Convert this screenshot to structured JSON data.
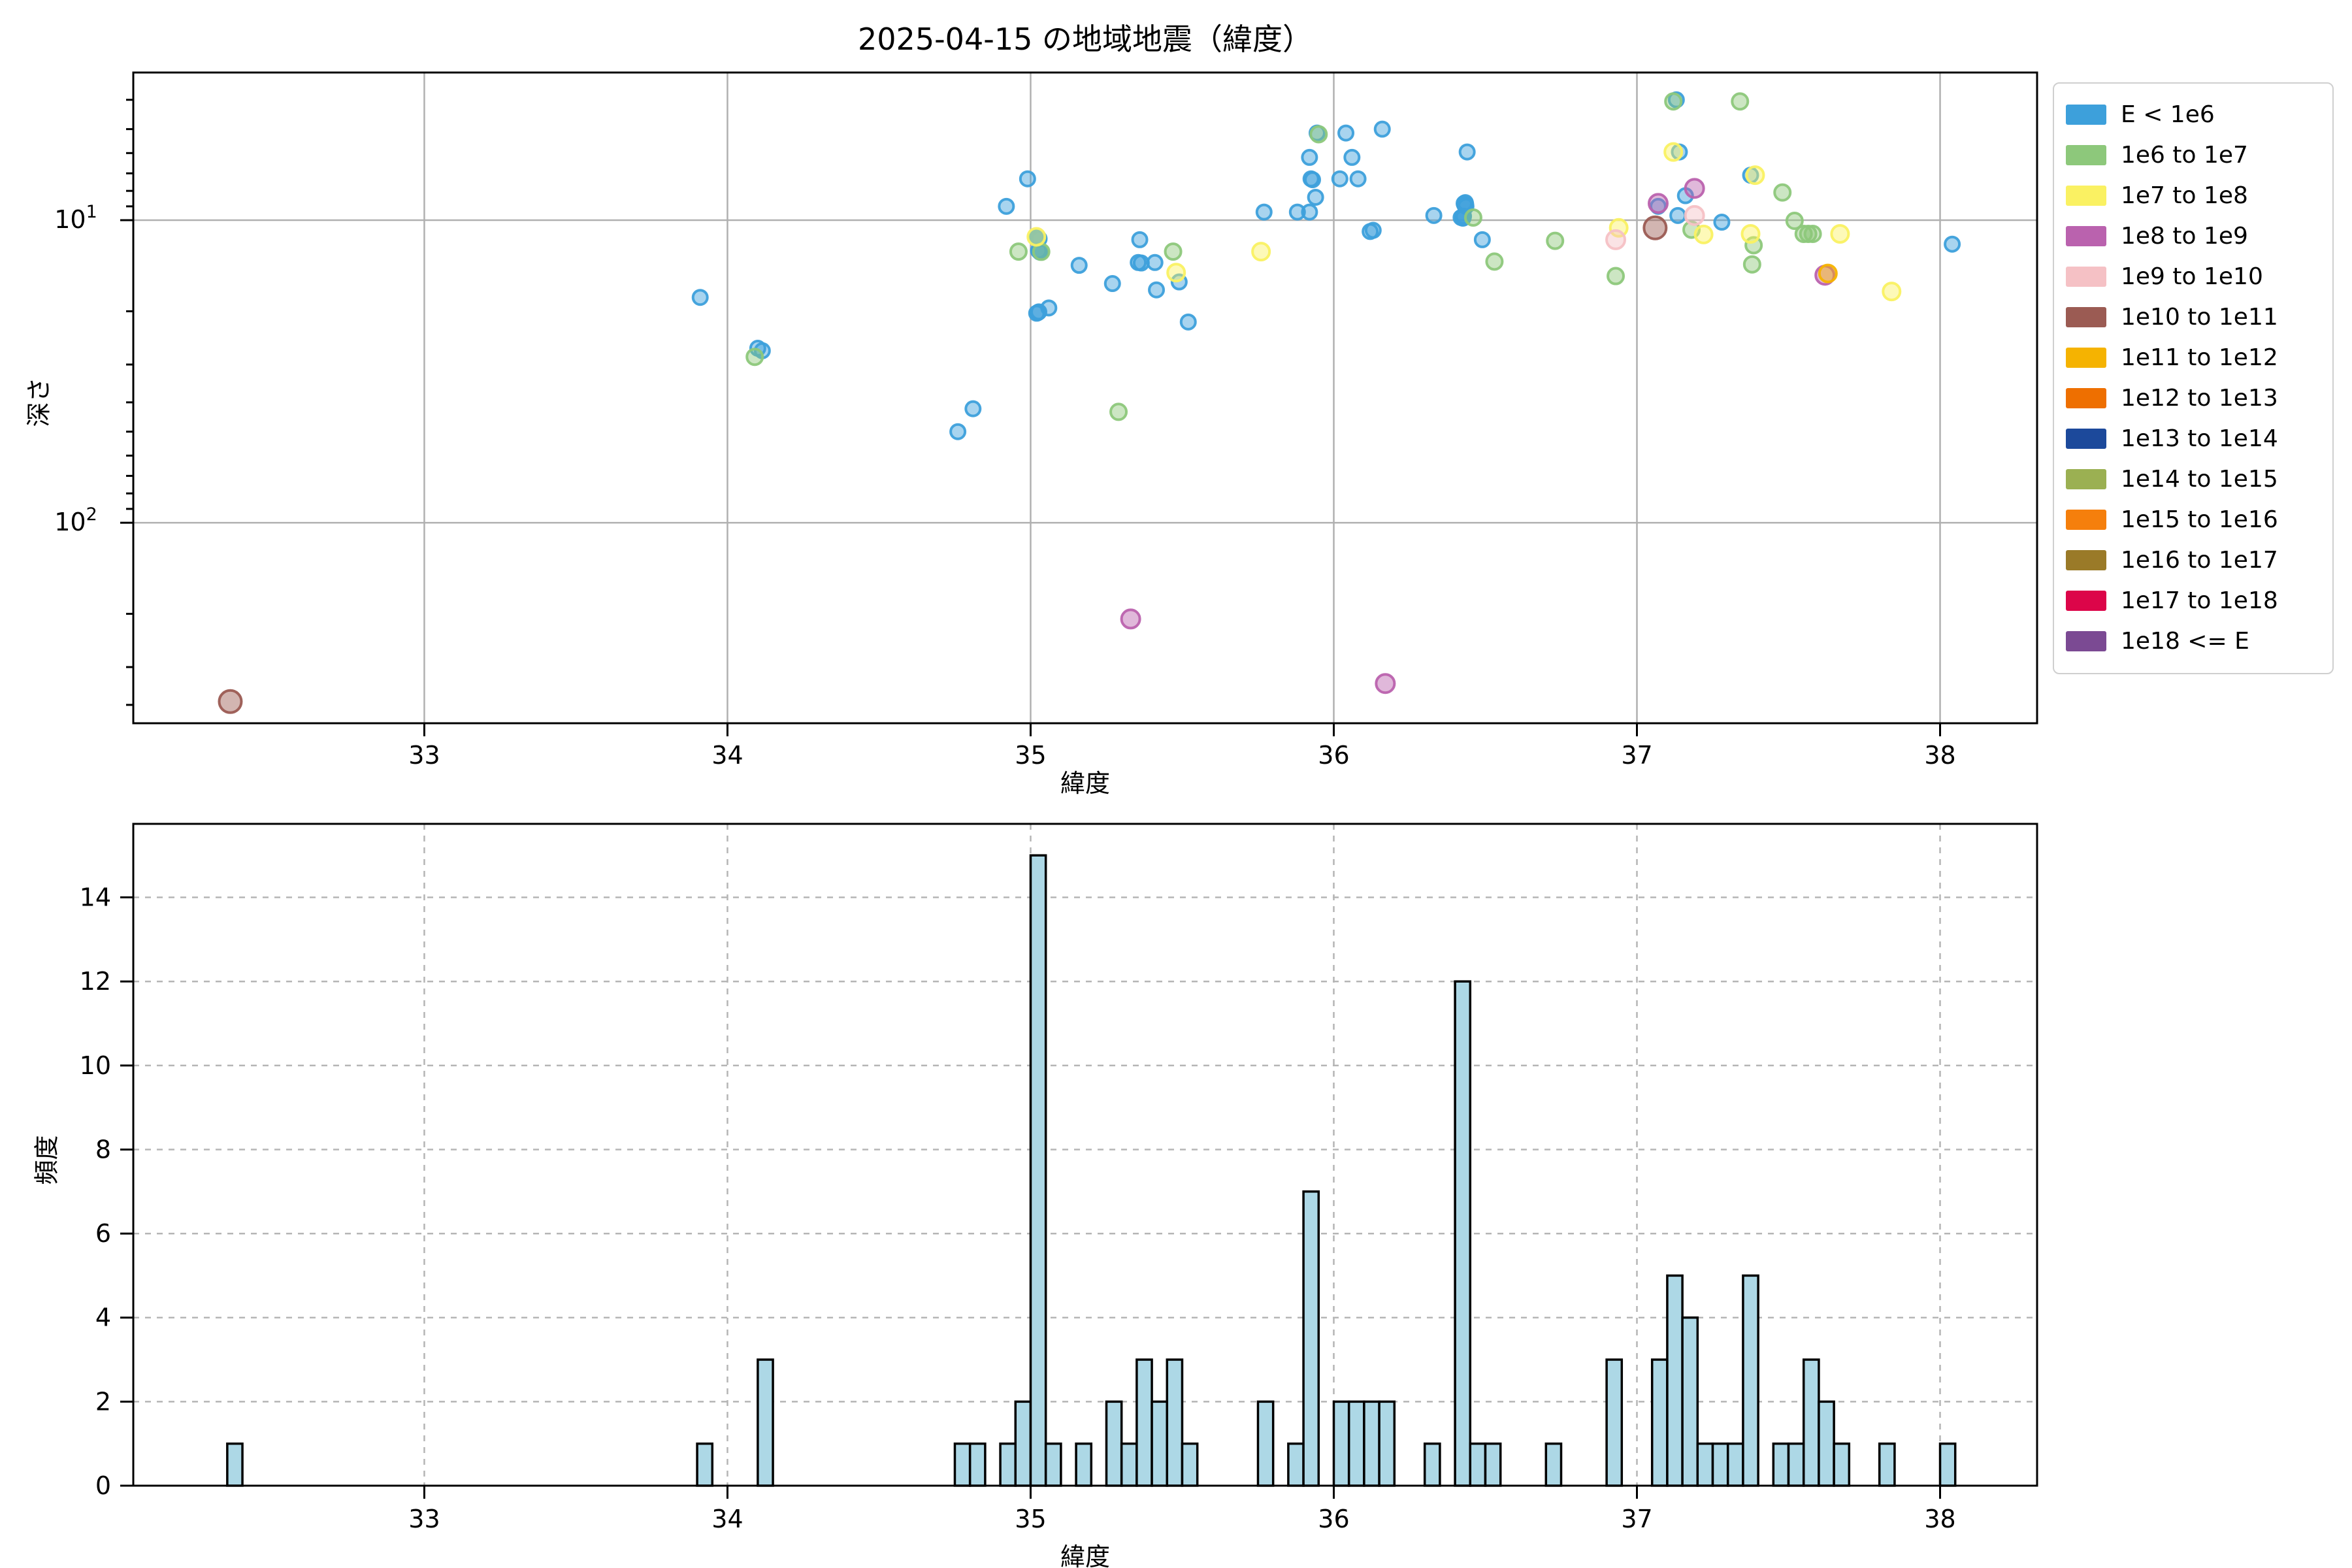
{
  "title": "2025-04-15 の地域地震（緯度）",
  "scatter": {
    "xlabel": "緯度",
    "ylabel": "深さ"
  },
  "hist": {
    "xlabel": "緯度",
    "ylabel": "頻度"
  },
  "legend": {
    "entries": [
      {
        "label": "E < 1e6",
        "color": "#3DA0DB"
      },
      {
        "label": "1e6 to 1e7",
        "color": "#8DC87B"
      },
      {
        "label": "1e7 to 1e8",
        "color": "#FAF162"
      },
      {
        "label": "1e8 to 1e9",
        "color": "#BA62AE"
      },
      {
        "label": "1e9 to 1e10",
        "color": "#F5C1C5"
      },
      {
        "label": "1e10 to 1e11",
        "color": "#9B5B53"
      },
      {
        "label": "1e11 to 1e12",
        "color": "#F5B301"
      },
      {
        "label": "1e12 to 1e13",
        "color": "#EE6F00"
      },
      {
        "label": "1e13 to 1e14",
        "color": "#1C499B"
      },
      {
        "label": "1e14 to 1e15",
        "color": "#9BB052"
      },
      {
        "label": "1e15 to 1e16",
        "color": "#F57F0C"
      },
      {
        "label": "1e16 to 1e17",
        "color": "#9A7A28"
      },
      {
        "label": "1e17 to 1e18",
        "color": "#DC0549"
      },
      {
        "label": "1e18 <= E",
        "color": "#7B4A93"
      }
    ]
  },
  "chart_data": [
    {
      "type": "scatter",
      "title": "2025-04-15 の地域地震（緯度）",
      "xlabel": "緯度",
      "ylabel": "深さ",
      "xlim": [
        32.04,
        38.32
      ],
      "ylim_depth": [
        3.25,
        460
      ],
      "yscale": "log-inverted",
      "xticks": [
        33,
        34,
        35,
        36,
        37,
        38
      ],
      "yticks_major": [
        10,
        100
      ],
      "yticks_minor": [
        4,
        5,
        6,
        7,
        8,
        9,
        20,
        30,
        40,
        50,
        60,
        70,
        80,
        90,
        200,
        300,
        400
      ],
      "grid": "solid",
      "legend_position": "outside-right",
      "series": [
        {
          "name": "E < 1e6",
          "color": "#3DA0DB",
          "marker_radius": 11,
          "points": [
            [
              33.91,
              18
            ],
            [
              34.1,
              26.5
            ],
            [
              34.115,
              27
            ],
            [
              34.76,
              50
            ],
            [
              34.81,
              42
            ],
            [
              34.92,
              9
            ],
            [
              34.99,
              7.3
            ],
            [
              35.02,
              11.4
            ],
            [
              35.021,
              11.45
            ],
            [
              35.022,
              11.5
            ],
            [
              35.023,
              11.42
            ],
            [
              35.025,
              11.48
            ],
            [
              35.028,
              11.52
            ],
            [
              35.03,
              12.7
            ],
            [
              35.031,
              12.75
            ],
            [
              35.029,
              12.65
            ],
            [
              35.026,
              12.6
            ],
            [
              35.02,
              20.3
            ],
            [
              35.024,
              20.2
            ],
            [
              35.027,
              20.1
            ],
            [
              35.06,
              19.5
            ],
            [
              35.16,
              14.1
            ],
            [
              35.27,
              16.2
            ],
            [
              35.355,
              13.8
            ],
            [
              35.36,
              11.6
            ],
            [
              35.365,
              13.85
            ],
            [
              35.41,
              13.8
            ],
            [
              35.415,
              17
            ],
            [
              35.49,
              16
            ],
            [
              35.52,
              21.7
            ],
            [
              35.77,
              9.4
            ],
            [
              35.88,
              9.4
            ],
            [
              35.92,
              9.4
            ],
            [
              35.92,
              6.2
            ],
            [
              35.925,
              7.3
            ],
            [
              35.93,
              7.35
            ],
            [
              35.94,
              8.4
            ],
            [
              35.945,
              5.15
            ],
            [
              36.02,
              7.3
            ],
            [
              36.04,
              5.15
            ],
            [
              36.06,
              6.2
            ],
            [
              36.08,
              7.3
            ],
            [
              36.12,
              10.9
            ],
            [
              36.13,
              10.8
            ],
            [
              36.16,
              5
            ],
            [
              36.33,
              9.65
            ],
            [
              36.42,
              9.8
            ],
            [
              36.425,
              9.75
            ],
            [
              36.426,
              9.85
            ],
            [
              36.427,
              9.78
            ],
            [
              36.428,
              9.7
            ],
            [
              36.43,
              8.8
            ],
            [
              36.432,
              8.9
            ],
            [
              36.434,
              8.75
            ],
            [
              36.435,
              8.85
            ],
            [
              36.436,
              9
            ],
            [
              36.44,
              5.95
            ],
            [
              36.49,
              11.6
            ],
            [
              37.07,
              9
            ],
            [
              37.13,
              4
            ],
            [
              37.135,
              9.65
            ],
            [
              37.14,
              5.95
            ],
            [
              37.16,
              8.3
            ],
            [
              37.28,
              10.15
            ],
            [
              37.375,
              7.1
            ],
            [
              38.04,
              12
            ]
          ]
        },
        {
          "name": "1e6 to 1e7",
          "color": "#8DC87B",
          "marker_radius": 12,
          "points": [
            [
              34.09,
              28.3
            ],
            [
              34.96,
              12.7
            ],
            [
              35.035,
              12.72
            ],
            [
              35.29,
              43
            ],
            [
              35.47,
              12.7
            ],
            [
              35.95,
              5.2
            ],
            [
              36.46,
              9.8
            ],
            [
              36.53,
              13.7
            ],
            [
              36.73,
              11.7
            ],
            [
              36.93,
              15.3
            ],
            [
              37.12,
              4.05
            ],
            [
              37.18,
              10.75
            ],
            [
              37.34,
              4.05
            ],
            [
              37.38,
              14
            ],
            [
              37.385,
              12.1
            ],
            [
              37.48,
              8.1
            ],
            [
              37.52,
              10.05
            ],
            [
              37.55,
              11.1
            ],
            [
              37.565,
              11.1
            ],
            [
              37.58,
              11.1
            ]
          ]
        },
        {
          "name": "1e7 to 1e8",
          "color": "#FAF162",
          "marker_radius": 13,
          "points": [
            [
              35.019,
              11.35
            ],
            [
              35.48,
              14.9
            ],
            [
              35.76,
              12.7
            ],
            [
              36.94,
              10.6
            ],
            [
              37.12,
              5.95
            ],
            [
              37.22,
              11.15
            ],
            [
              37.375,
              11.1
            ],
            [
              37.39,
              7.1
            ],
            [
              37.67,
              11.1
            ],
            [
              37.84,
              17.2
            ]
          ]
        },
        {
          "name": "1e8 to 1e9",
          "color": "#BA62AE",
          "marker_radius": 14,
          "points": [
            [
              35.33,
              208
            ],
            [
              36.17,
              340
            ],
            [
              37.07,
              8.8
            ],
            [
              37.19,
              7.85
            ],
            [
              37.62,
              15.2
            ]
          ]
        },
        {
          "name": "1e9 to 1e10",
          "color": "#F5C1C5",
          "marker_radius": 14,
          "points": [
            [
              36.93,
              11.6
            ],
            [
              37.19,
              9.65
            ]
          ]
        },
        {
          "name": "1e10 to 1e11",
          "color": "#9B5B53",
          "marker_radius": 17,
          "points": [
            [
              32.36,
              390
            ],
            [
              37.06,
              10.6
            ]
          ]
        },
        {
          "name": "1e11 to 1e12",
          "color": "#F5B301",
          "marker_radius": 13,
          "points": [
            [
              37.63,
              15
            ]
          ]
        }
      ]
    },
    {
      "type": "histogram",
      "xlabel": "緯度",
      "ylabel": "頻度",
      "xlim": [
        32.04,
        38.32
      ],
      "ylim": [
        0,
        15.75
      ],
      "xticks": [
        33,
        34,
        35,
        36,
        37,
        38
      ],
      "yticks": [
        0,
        2,
        4,
        6,
        8,
        10,
        12,
        14
      ],
      "bin_width": 0.05,
      "grid": "dashed",
      "bar_color": "#ADD8E6",
      "bar_edge": "#000000",
      "bins": [
        [
          32.35,
          1
        ],
        [
          33.9,
          1
        ],
        [
          34.1,
          3
        ],
        [
          34.75,
          1
        ],
        [
          34.8,
          1
        ],
        [
          34.9,
          1
        ],
        [
          34.95,
          2
        ],
        [
          35.0,
          15
        ],
        [
          35.05,
          1
        ],
        [
          35.15,
          1
        ],
        [
          35.25,
          2
        ],
        [
          35.3,
          1
        ],
        [
          35.35,
          3
        ],
        [
          35.4,
          2
        ],
        [
          35.45,
          3
        ],
        [
          35.5,
          1
        ],
        [
          35.75,
          2
        ],
        [
          35.85,
          1
        ],
        [
          35.9,
          7
        ],
        [
          36.0,
          2
        ],
        [
          36.05,
          2
        ],
        [
          36.1,
          2
        ],
        [
          36.15,
          2
        ],
        [
          36.3,
          1
        ],
        [
          36.4,
          12
        ],
        [
          36.45,
          1
        ],
        [
          36.5,
          1
        ],
        [
          36.7,
          1
        ],
        [
          36.9,
          3
        ],
        [
          37.05,
          3
        ],
        [
          37.1,
          5
        ],
        [
          37.15,
          4
        ],
        [
          37.2,
          1
        ],
        [
          37.25,
          1
        ],
        [
          37.3,
          1
        ],
        [
          37.35,
          5
        ],
        [
          37.45,
          1
        ],
        [
          37.5,
          1
        ],
        [
          37.55,
          3
        ],
        [
          37.6,
          2
        ],
        [
          37.65,
          1
        ],
        [
          37.8,
          1
        ],
        [
          38.0,
          1
        ]
      ]
    }
  ]
}
